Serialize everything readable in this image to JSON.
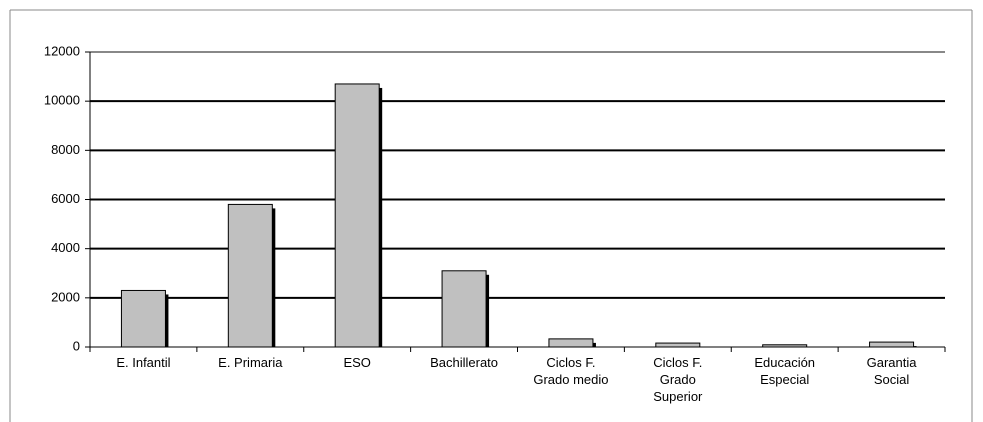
{
  "chart_data": {
    "type": "bar",
    "categories": [
      "E. Infantil",
      "E. Primaria",
      "ESO",
      "Bachillerato",
      "Ciclos F.\nGrado medio",
      "Ciclos F.\nGrado\nSuperior",
      "Educación\nEspecial",
      "Garantia\nSocial"
    ],
    "values": [
      2300,
      5800,
      10700,
      3100,
      330,
      160,
      90,
      200
    ],
    "color": "#c0c0c0",
    "ylim": [
      0,
      12000
    ],
    "yticks": [
      0,
      2000,
      4000,
      6000,
      8000,
      10000,
      12000
    ],
    "grid": true
  }
}
